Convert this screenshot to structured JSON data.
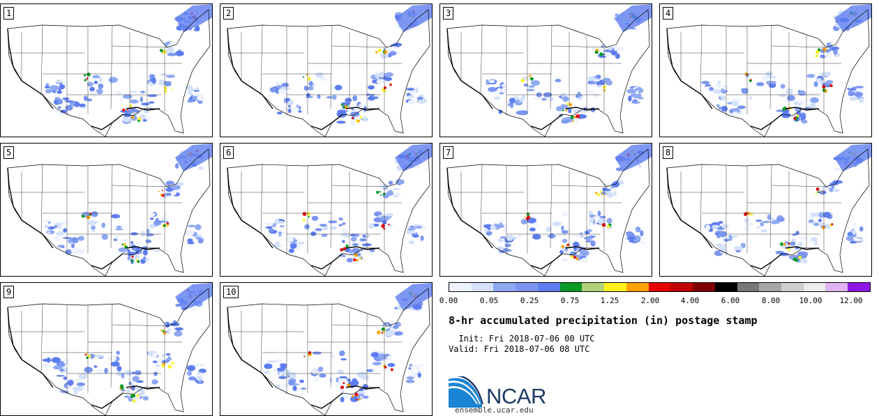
{
  "panels": [
    {
      "label": "1"
    },
    {
      "label": "2"
    },
    {
      "label": "3"
    },
    {
      "label": "4"
    },
    {
      "label": "5"
    },
    {
      "label": "6"
    },
    {
      "label": "7"
    },
    {
      "label": "8"
    },
    {
      "label": "9"
    },
    {
      "label": "10"
    }
  ],
  "colorbar": {
    "colors": [
      "#eef3fd",
      "#d4e1fb",
      "#8fa8f2",
      "#7b96ef",
      "#5e7df0",
      "#0b9a25",
      "#b2d27a",
      "#fff21b",
      "#ffa200",
      "#e60000",
      "#c00000",
      "#7f0000",
      "#000000",
      "#777777",
      "#a6a6a6",
      "#cfcfcf",
      "#ececec",
      "#dfb3f2",
      "#8f17e3"
    ],
    "ticks": [
      "0.00",
      "0.05",
      "0.25",
      "0.75",
      "1.25",
      "2.00",
      "4.00",
      "6.00",
      "8.00",
      "10.00",
      "12.00"
    ]
  },
  "title": "8-hr accumulated precipitation (in) postage stamp",
  "init_line": "  Init: Fri 2018-07-06 00 UTC",
  "valid_line": "Valid: Fri 2018-07-06 08 UTC",
  "logo": {
    "text": "NCAR",
    "url": "ensemble.ucar.edu"
  }
}
